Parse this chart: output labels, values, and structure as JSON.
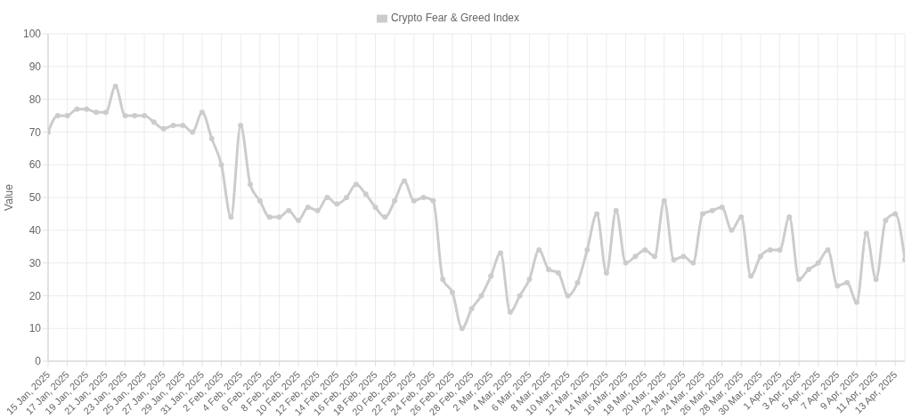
{
  "chart_data": {
    "type": "line",
    "ylabel": "Value",
    "categories": [
      "15 Jan, 2025",
      null,
      "17 Jan, 2025",
      null,
      "19 Jan, 2025",
      null,
      "21 Jan, 2025",
      null,
      "23 Jan, 2025",
      null,
      "25 Jan, 2025",
      null,
      "27 Jan, 2025",
      null,
      "29 Jan, 2025",
      null,
      "31 Jan, 2025",
      null,
      "2 Feb, 2025",
      null,
      "4 Feb, 2025",
      null,
      "6 Feb, 2025",
      null,
      "8 Feb, 2025",
      null,
      "10 Feb, 2025",
      null,
      "12 Feb, 2025",
      null,
      "14 Feb, 2025",
      null,
      "16 Feb, 2025",
      null,
      "18 Feb, 2025",
      null,
      "20 Feb, 2025",
      null,
      "22 Feb, 2025",
      null,
      "24 Feb, 2025",
      null,
      "26 Feb, 2025",
      null,
      "28 Feb, 2025",
      null,
      "2 Mar, 2025",
      null,
      "4 Mar, 2025",
      null,
      "6 Mar, 2025",
      null,
      "8 Mar, 2025",
      null,
      "10 Mar, 2025",
      null,
      "12 Mar, 2025",
      null,
      "14 Mar, 2025",
      null,
      "16 Mar, 2025",
      null,
      "18 Mar, 2025",
      null,
      "20 Mar, 2025",
      null,
      "22 Mar, 2025",
      null,
      "24 Mar, 2025",
      null,
      "26 Mar, 2025",
      null,
      "28 Mar, 2025",
      null,
      "30 Mar, 2025",
      null,
      "1 Apr, 2025",
      null,
      "3 Apr, 2025",
      null,
      "5 Apr, 2025",
      null,
      "7 Apr, 2025",
      null,
      "9 Apr, 2025",
      null,
      "11 Apr, 2025",
      null,
      "13 Apr, 2025",
      null
    ],
    "series": [
      {
        "name": "Crypto Fear & Greed Index",
        "color": "#cccccc",
        "values": [
          70,
          75,
          75,
          77,
          77,
          76,
          76,
          84,
          75,
          75,
          75,
          73,
          71,
          72,
          72,
          70,
          76,
          68,
          60,
          44,
          72,
          54,
          49,
          44,
          44,
          46,
          43,
          47,
          46,
          50,
          48,
          50,
          54,
          51,
          47,
          44,
          49,
          55,
          49,
          50,
          49,
          25,
          21,
          10,
          16,
          20,
          26,
          33,
          15,
          20,
          25,
          34,
          28,
          27,
          20,
          24,
          34,
          45,
          27,
          46,
          30,
          32,
          34,
          32,
          49,
          31,
          32,
          30,
          45,
          46,
          47,
          40,
          44,
          26,
          32,
          34,
          34,
          44,
          25,
          28,
          30,
          34,
          23,
          24,
          18,
          39,
          25,
          43,
          45,
          31
        ]
      }
    ],
    "ylim": [
      0,
      100
    ],
    "yticks": [
      0,
      10,
      20,
      30,
      40,
      50,
      60,
      70,
      80,
      90,
      100
    ],
    "grid": true,
    "legend": "top",
    "marker": "circle",
    "line_style": "solid"
  }
}
